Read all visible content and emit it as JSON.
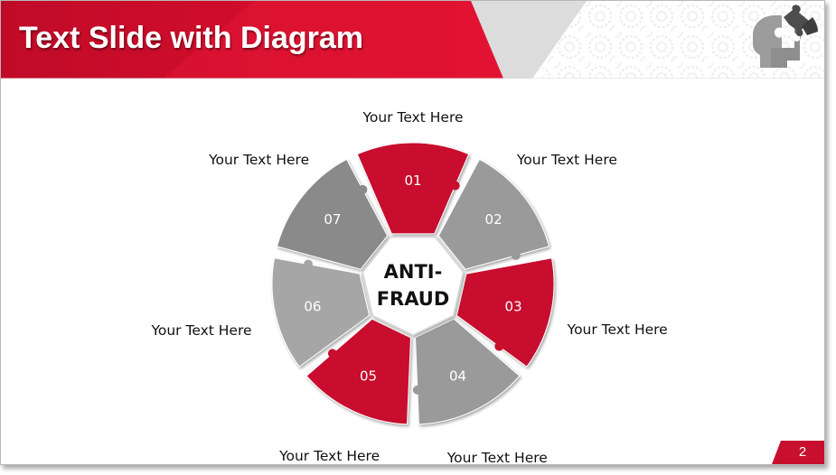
{
  "slide": {
    "title": "Text Slide with Diagram",
    "page_number": "2"
  },
  "diagram": {
    "center_label": [
      "ANTI-",
      "FRAUD"
    ],
    "segments": [
      {
        "number": "01",
        "label": "Your Text Here",
        "color": "#c8102e"
      },
      {
        "number": "02",
        "label": "Your Text Here",
        "color": "#9a9a9a"
      },
      {
        "number": "03",
        "label": "Your Text Here",
        "color": "#c8102e"
      },
      {
        "number": "04",
        "label": "Your Text Here",
        "color": "#9a9a9a"
      },
      {
        "number": "05",
        "label": "Your Text Here",
        "color": "#c8102e"
      },
      {
        "number": "06",
        "label": "Your Text Here",
        "color": "#a6a6a6"
      },
      {
        "number": "07",
        "label": "Your Text Here",
        "color": "#8a8a8a"
      }
    ]
  },
  "colors": {
    "accent_red": "#c8102e",
    "gray": "#9a9a9a",
    "dark_gray": "#808080"
  },
  "icons": {
    "logo": "puzzle-head-icon"
  }
}
